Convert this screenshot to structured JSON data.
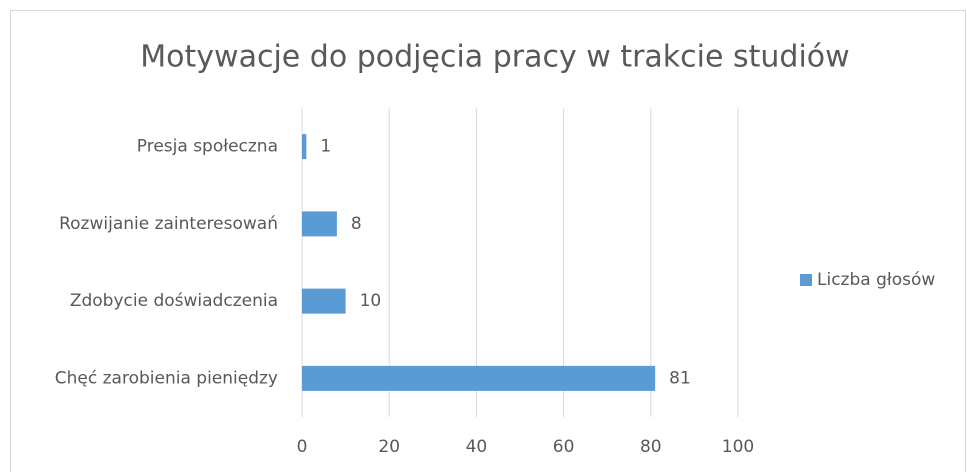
{
  "chart_data": {
    "type": "bar",
    "orientation": "horizontal",
    "title": "Motywacje do podjęcia pracy w trakcie studiów",
    "categories": [
      "Presja społeczna",
      "Rozwijanie zainteresowań",
      "Zdobycie doświadczenia",
      "Chęć zarobienia pieniędzy"
    ],
    "series": [
      {
        "name": "Liczba głosów",
        "color": "#5b9bd5",
        "values": [
          1,
          8,
          10,
          81
        ]
      }
    ],
    "xlim": [
      0,
      100
    ],
    "xticks": [
      0,
      20,
      40,
      60,
      80,
      100
    ],
    "grid": true,
    "legend": "right"
  }
}
